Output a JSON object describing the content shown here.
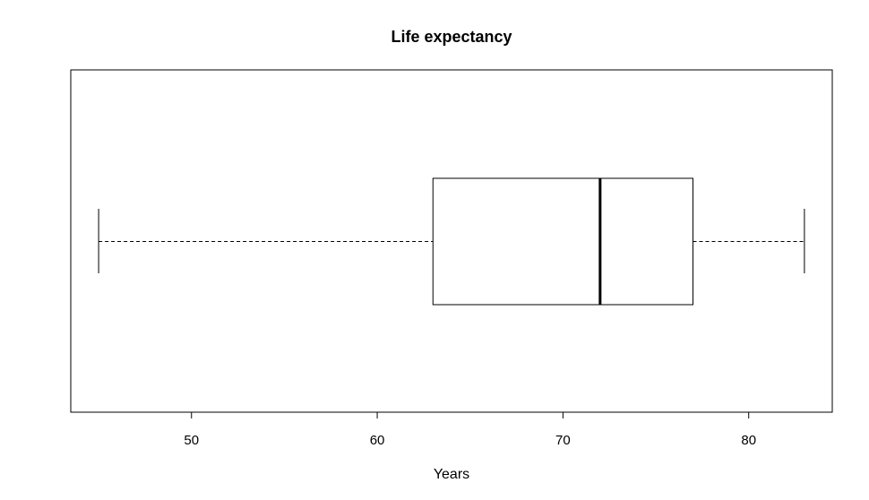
{
  "chart_data": {
    "type": "boxplot",
    "orientation": "horizontal",
    "title": "Life expectancy",
    "xlabel": "Years",
    "ylabel": "",
    "xlim": [
      43.5,
      84.5
    ],
    "ticks": [
      50,
      60,
      70,
      80
    ],
    "tick_labels": [
      "50",
      "60",
      "70",
      "80"
    ],
    "box": {
      "min": 45,
      "q1": 63,
      "median": 72,
      "q3": 77,
      "max": 83
    },
    "grid": false,
    "legend": "none",
    "colors": {
      "box_fill": "#ffffff",
      "stroke": "#000000"
    }
  }
}
